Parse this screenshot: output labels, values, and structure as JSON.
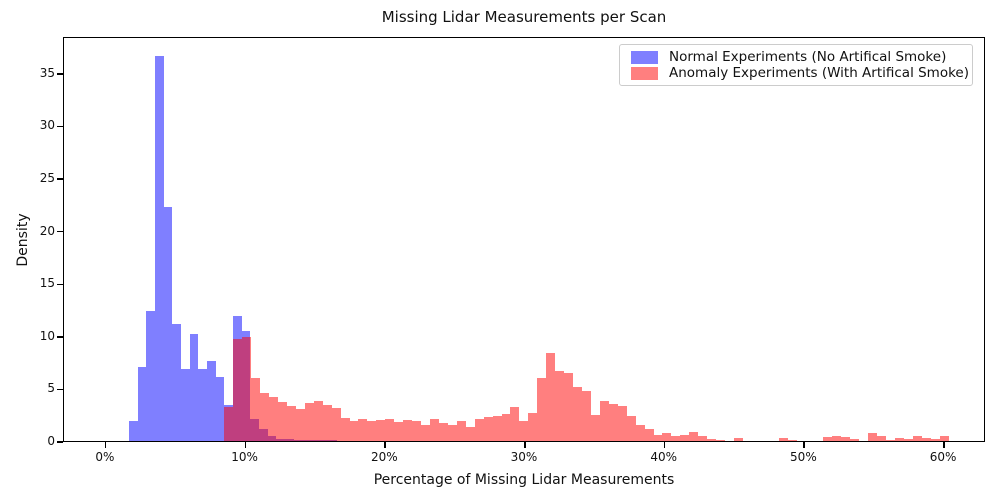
{
  "title": "Missing Lidar Measurements per Scan",
  "xlabel": "Percentage of Missing Lidar Measurements",
  "ylabel": "Density",
  "legend": [
    {
      "label": "Normal Experiments (No Artifical Smoke)",
      "color": "rgba(0,0,255,0.5)"
    },
    {
      "label": "Anomaly Experiments (With Artifical Smoke)",
      "color": "rgba(255,0,0,0.5)"
    }
  ],
  "colors": {
    "normal_fill": "#8080ff",
    "anomaly_fill": "#ff8080",
    "overlap": "#bf4080",
    "axis": "#000000",
    "background": "#ffffff",
    "legend_border": "#cccccc"
  },
  "chart_data": {
    "type": "histogram",
    "title": "Missing Lidar Measurements per Scan",
    "xlabel": "Percentage of Missing Lidar Measurements",
    "ylabel": "Density",
    "xlim": [
      -3,
      63
    ],
    "ylim": [
      0,
      38.5
    ],
    "grid": false,
    "legend_position": "top-right",
    "x_ticks": {
      "values": [
        0,
        10,
        20,
        30,
        40,
        50,
        60
      ],
      "labels": [
        "0%",
        "10%",
        "20%",
        "30%",
        "40%",
        "50%",
        "60%"
      ]
    },
    "y_ticks": {
      "values": [
        0,
        5,
        10,
        15,
        20,
        25,
        30,
        35
      ],
      "labels": [
        "0",
        "5",
        "10",
        "15",
        "20",
        "25",
        "30",
        "35"
      ]
    },
    "series": [
      {
        "name": "Normal Experiments (No Artifical Smoke)",
        "color": "rgba(0,0,255,0.5)",
        "bin_start_pct": 1.66,
        "bin_width_pct": 0.62,
        "densities": [
          1.9,
          7.0,
          12.4,
          36.6,
          22.2,
          11.1,
          6.8,
          10.2,
          6.8,
          7.6,
          6.1,
          3.4,
          11.9,
          10.5,
          2.1,
          1.1,
          0.5,
          0.2,
          0.15,
          0.12,
          0.1,
          0.1,
          0.08,
          0.05
        ]
      },
      {
        "name": "Anomaly Experiments (With Artifical Smoke)",
        "color": "rgba(255,0,0,0.5)",
        "bin_start_pct": 8.48,
        "bin_width_pct": 0.64,
        "densities": [
          3.2,
          9.7,
          9.9,
          6.0,
          4.6,
          4.2,
          3.7,
          3.3,
          3.0,
          3.6,
          3.8,
          3.4,
          3.1,
          2.2,
          1.9,
          2.1,
          1.9,
          2.0,
          2.1,
          1.8,
          2.0,
          1.9,
          1.5,
          2.1,
          1.7,
          1.5,
          1.9,
          1.3,
          2.1,
          2.3,
          2.4,
          2.6,
          3.2,
          1.9,
          2.7,
          6.0,
          8.4,
          6.7,
          6.5,
          5.1,
          4.8,
          2.5,
          3.8,
          3.5,
          3.3,
          2.4,
          1.5,
          1.1,
          0.6,
          0.8,
          0.5,
          0.6,
          0.9,
          0.45,
          0.2,
          0.1,
          0,
          0.25,
          0,
          0,
          0,
          0,
          0.25,
          0.1,
          0,
          0,
          0,
          0.35,
          0.45,
          0.35,
          0.15,
          0,
          0.73,
          0.5,
          0.1,
          0.25,
          0.15,
          0.45,
          0.25,
          0.2,
          0.45
        ]
      }
    ]
  }
}
